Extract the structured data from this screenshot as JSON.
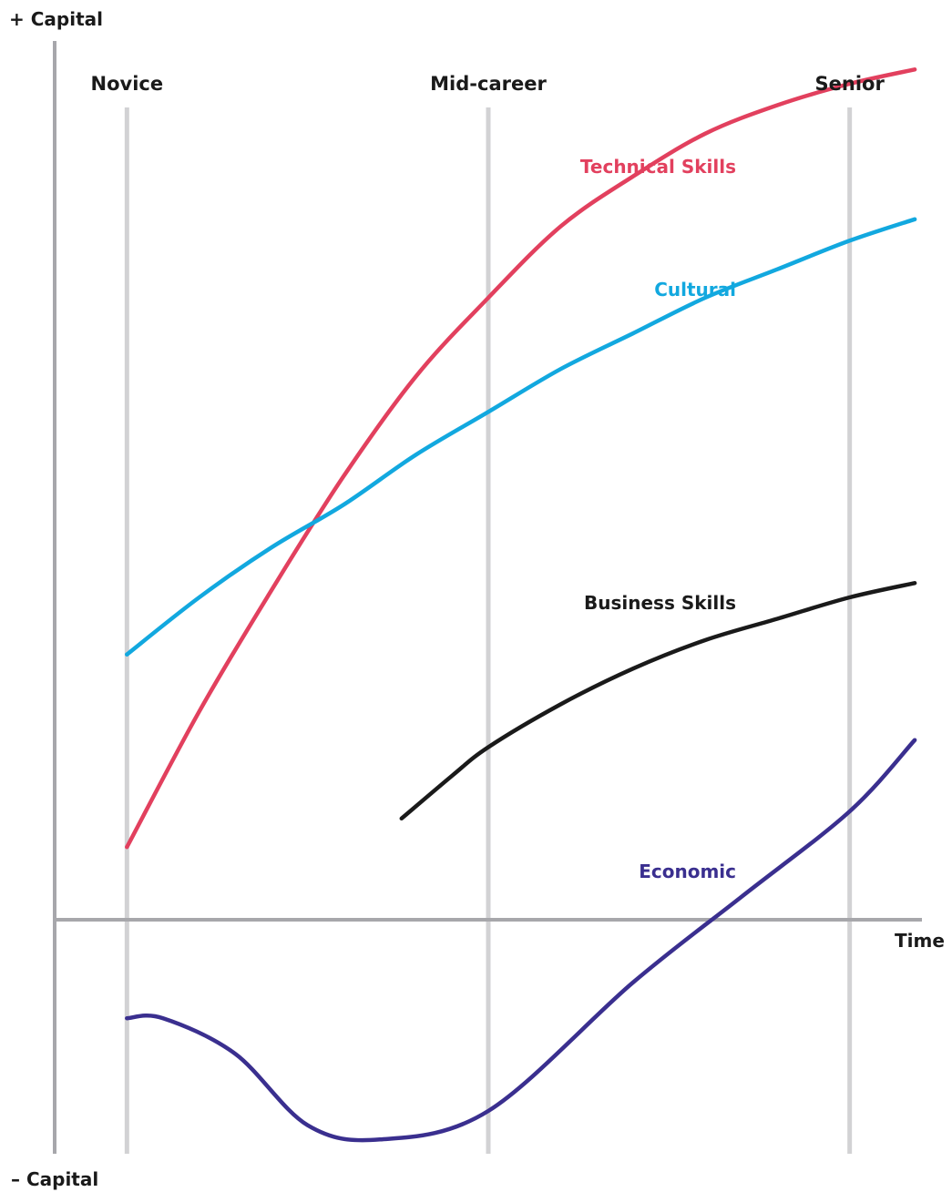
{
  "chart_data": {
    "type": "line",
    "y_top_label": "+ Capital",
    "y_bottom_label": "– Capital",
    "xlabel": "Time",
    "stages": [
      {
        "name": "Novice",
        "x": 1
      },
      {
        "name": "Mid-career",
        "x": 6
      },
      {
        "name": "Senior",
        "x": 11
      }
    ],
    "xlim": [
      0,
      12
    ],
    "ylim": [
      -3.2,
      12.4
    ],
    "grid": "vertical lines at stages",
    "series": [
      {
        "name": "Technical Skills",
        "color": "#e2405e",
        "x": [
          1,
          2,
          3,
          4,
          5,
          6,
          7,
          8,
          9,
          10,
          11,
          11.9
        ],
        "y": [
          1.1,
          3.0,
          4.7,
          6.3,
          7.7,
          8.8,
          9.8,
          10.5,
          11.1,
          11.5,
          11.8,
          12.0
        ]
      },
      {
        "name": "Cultural",
        "color": "#12a8df",
        "x": [
          1,
          2,
          3,
          4,
          5,
          6,
          7,
          8,
          9,
          10,
          11,
          11.9
        ],
        "y": [
          3.8,
          4.6,
          5.3,
          5.9,
          6.6,
          7.2,
          7.8,
          8.3,
          8.8,
          9.2,
          9.6,
          9.9
        ]
      },
      {
        "name": "Business Skills",
        "color": "#1a1a1a",
        "x": [
          4.8,
          5.5,
          6,
          7,
          8,
          9,
          10,
          11,
          11.9
        ],
        "y": [
          1.5,
          2.1,
          2.5,
          3.1,
          3.6,
          4.0,
          4.3,
          4.6,
          4.8
        ]
      },
      {
        "name": "Economic",
        "color": "#3a2f8f",
        "x": [
          1,
          1.5,
          2.5,
          3.5,
          4.5,
          6,
          8,
          9.5,
          11,
          11.9
        ],
        "y": [
          -1.3,
          -1.3,
          -1.8,
          -2.8,
          -3.0,
          -2.6,
          -0.8,
          0.4,
          1.6,
          2.6
        ]
      }
    ],
    "annotations": [
      {
        "text": "Technical Skills",
        "series": "Technical Skills"
      },
      {
        "text": "Cultural",
        "series": "Cultural"
      },
      {
        "text": "Business Skills",
        "series": "Business Skills"
      },
      {
        "text": "Economic",
        "series": "Economic"
      }
    ],
    "legend": "none (direct labels on curves)"
  }
}
